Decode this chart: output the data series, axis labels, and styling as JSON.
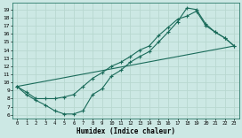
{
  "xlabel": "Humidex (Indice chaleur)",
  "xlim": [
    -0.5,
    23.5
  ],
  "ylim": [
    5.5,
    19.8
  ],
  "xticks": [
    0,
    1,
    2,
    3,
    4,
    5,
    6,
    7,
    8,
    9,
    10,
    11,
    12,
    13,
    14,
    15,
    16,
    17,
    18,
    19,
    20,
    21,
    22,
    23
  ],
  "yticks": [
    6,
    7,
    8,
    9,
    10,
    11,
    12,
    13,
    14,
    15,
    16,
    17,
    18,
    19
  ],
  "bg_color": "#cce8e4",
  "line_color": "#1a6b5a",
  "grid_color": "#b8d8d0",
  "line1_x": [
    0,
    1,
    2,
    3,
    4,
    5,
    6,
    7,
    8,
    9,
    10,
    11,
    12,
    13,
    14,
    15,
    16,
    17,
    18,
    19,
    20,
    21,
    22,
    23
  ],
  "line1_y": [
    9.5,
    8.8,
    8.0,
    8.0,
    8.0,
    8.2,
    8.5,
    9.5,
    10.5,
    11.2,
    12.0,
    12.5,
    13.2,
    14.0,
    14.5,
    15.8,
    16.8,
    17.8,
    18.2,
    18.8,
    17.0,
    16.2,
    15.5,
    14.5
  ],
  "line2_x": [
    0,
    1,
    2,
    3,
    4,
    5,
    6,
    7,
    8,
    9,
    10,
    11,
    12,
    13,
    14,
    15,
    16,
    17,
    18,
    19,
    20,
    21,
    22,
    23
  ],
  "line2_y": [
    9.5,
    8.5,
    7.8,
    7.2,
    6.5,
    6.1,
    6.1,
    6.5,
    8.5,
    9.2,
    10.8,
    11.5,
    12.5,
    13.2,
    13.8,
    15.0,
    16.2,
    17.5,
    19.2,
    19.0,
    17.2,
    16.2,
    15.5,
    14.5
  ],
  "line3_x": [
    0,
    23
  ],
  "line3_y": [
    9.5,
    14.5
  ]
}
